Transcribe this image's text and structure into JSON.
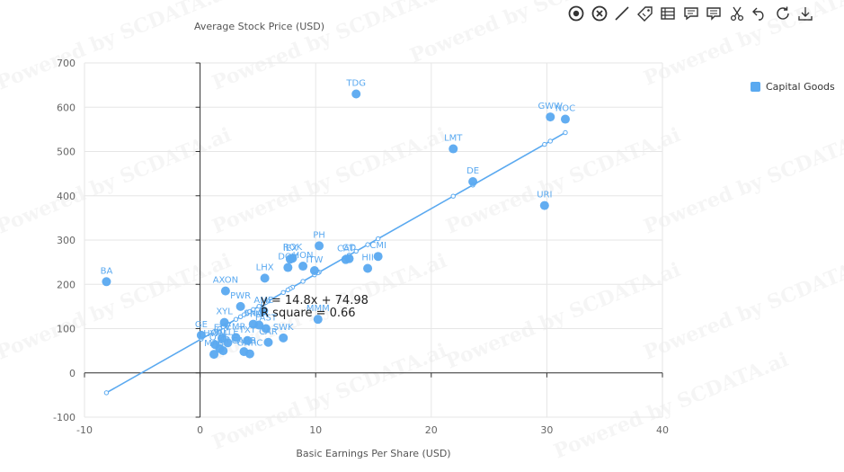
{
  "toolbar": {
    "tools": [
      {
        "icon": "target-icon"
      },
      {
        "icon": "close-circle-icon"
      },
      {
        "icon": "line-icon"
      },
      {
        "icon": "tag-icon"
      },
      {
        "icon": "table-icon"
      },
      {
        "icon": "comment-icon"
      },
      {
        "icon": "bookmark-list-icon"
      },
      {
        "icon": "scissors-icon"
      },
      {
        "icon": "undo-icon"
      },
      {
        "icon": "refresh-icon"
      },
      {
        "icon": "download-icon"
      }
    ],
    "icon_color": "#333333"
  },
  "watermark": "Powered by SCDATA.ai",
  "chart_data": {
    "type": "scatter",
    "ylabel": "Average Stock Price (USD)",
    "xlabel": "Basic Earnings Per Share (USD)",
    "xlim": [
      -10,
      40
    ],
    "ylim": [
      -100,
      700
    ],
    "x_ticks": [
      -10,
      0,
      10,
      20,
      30,
      40
    ],
    "y_ticks": [
      -100,
      0,
      100,
      200,
      300,
      400,
      500,
      600,
      700
    ],
    "grid": true,
    "legend": "top-right",
    "color": "#5aa9f0",
    "series": [
      {
        "name": "Capital Goods",
        "points": [
          {
            "label": "TDG",
            "x": 13.5,
            "y": 630
          },
          {
            "label": "GWW",
            "x": 30.3,
            "y": 578
          },
          {
            "label": "NOC",
            "x": 31.6,
            "y": 573
          },
          {
            "label": "LMT",
            "x": 21.9,
            "y": 506
          },
          {
            "label": "DE",
            "x": 23.6,
            "y": 432
          },
          {
            "label": "URI",
            "x": 29.8,
            "y": 378
          },
          {
            "label": "BA",
            "x": -8.1,
            "y": 206
          },
          {
            "label": "PH",
            "x": 10.3,
            "y": 287
          },
          {
            "label": "ROK",
            "x": 8.0,
            "y": 259
          },
          {
            "label": "IEX",
            "x": 7.8,
            "y": 257
          },
          {
            "label": "DOV",
            "x": 7.6,
            "y": 238
          },
          {
            "label": "HON",
            "x": 8.9,
            "y": 241
          },
          {
            "label": "ITW",
            "x": 9.9,
            "y": 231
          },
          {
            "label": "CAT",
            "x": 12.6,
            "y": 256
          },
          {
            "label": "CMI",
            "x": 15.4,
            "y": 263
          },
          {
            "label": "HII",
            "x": 14.5,
            "y": 236
          },
          {
            "label": "GD",
            "x": 12.9,
            "y": 258
          },
          {
            "label": "MMM",
            "x": 10.2,
            "y": 121
          },
          {
            "label": "LHX",
            "x": 5.6,
            "y": 214
          },
          {
            "label": "AXON",
            "x": 2.2,
            "y": 185
          },
          {
            "label": "PWR",
            "x": 3.5,
            "y": 150
          },
          {
            "label": "AME",
            "x": 5.5,
            "y": 140
          },
          {
            "label": "XYL",
            "x": 2.1,
            "y": 114
          },
          {
            "label": "PNR",
            "x": 5.1,
            "y": 108
          },
          {
            "label": "SWK",
            "x": 7.2,
            "y": 79
          },
          {
            "label": "CAR",
            "x": 5.9,
            "y": 69
          },
          {
            "label": "TXT",
            "x": 4.1,
            "y": 73
          },
          {
            "label": "CARR",
            "x": 3.8,
            "y": 48
          },
          {
            "label": "GE",
            "x": 0.1,
            "y": 85
          },
          {
            "label": "FTV",
            "x": 1.9,
            "y": 78
          },
          {
            "label": "HWM",
            "x": 1.3,
            "y": 64
          },
          {
            "label": "ALLE",
            "x": 2.4,
            "y": 68
          },
          {
            "label": "EMR",
            "x": 3.1,
            "y": 80
          },
          {
            "label": "OTIS",
            "x": 1.7,
            "y": 55
          },
          {
            "label": "MAS",
            "x": 1.2,
            "y": 42
          },
          {
            "label": "JCI",
            "x": 2.0,
            "y": 50
          },
          {
            "label": "GNRC",
            "x": 4.3,
            "y": 43
          },
          {
            "label": "FAST",
            "x": 5.7,
            "y": 100
          },
          {
            "label": "SNA",
            "x": 4.6,
            "y": 110
          }
        ]
      }
    ],
    "trendline": {
      "slope": 14.8,
      "intercept": 74.98,
      "equation": "y = 14.8x + 74.98",
      "r_square": "R square = 0.66"
    }
  }
}
